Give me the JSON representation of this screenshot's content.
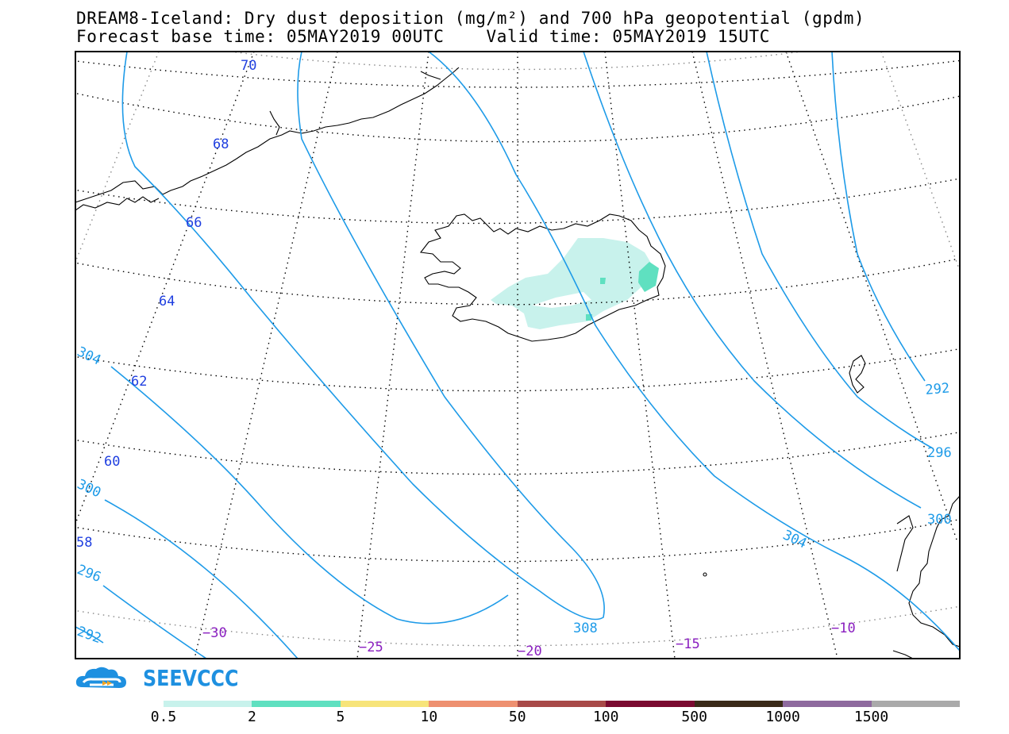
{
  "header": {
    "title_line1": "DREAM8-Iceland: Dry dust deposition (mg/m²) and 700 hPa geopotential (gpdm)",
    "title_line2": "Forecast base time: 05MAY2019 00UTC    Valid time: 05MAY2019 15UTC"
  },
  "map": {
    "region": "Iceland",
    "latitude_labels": [
      "70",
      "68",
      "66",
      "64",
      "62",
      "60",
      "58"
    ],
    "longitude_labels": [
      "−30",
      "−25",
      "−20",
      "−15",
      "−10"
    ],
    "contour_labels": [
      "304",
      "300",
      "296",
      "292",
      "308",
      "304",
      "292",
      "296",
      "300"
    ],
    "colors": {
      "contour": "#1E9BE8",
      "lat_label": "#1F3FE0",
      "lon_label": "#8A1FC0",
      "coast": "#000000",
      "grid": "#000000"
    }
  },
  "logo": {
    "text": "SEEVCCC",
    "icon": "cloud-logo-icon"
  },
  "colorbar": {
    "labels": [
      "0.5",
      "2",
      "5",
      "10",
      "50",
      "100",
      "500",
      "1000",
      "1500"
    ],
    "colors": [
      "#C8F2EC",
      "#5FE0C0",
      "#F7E47A",
      "#EE9070",
      "#A84A48",
      "#7A0A30",
      "#3A2A18",
      "#8E6A9E",
      "#AAAAAA"
    ]
  }
}
